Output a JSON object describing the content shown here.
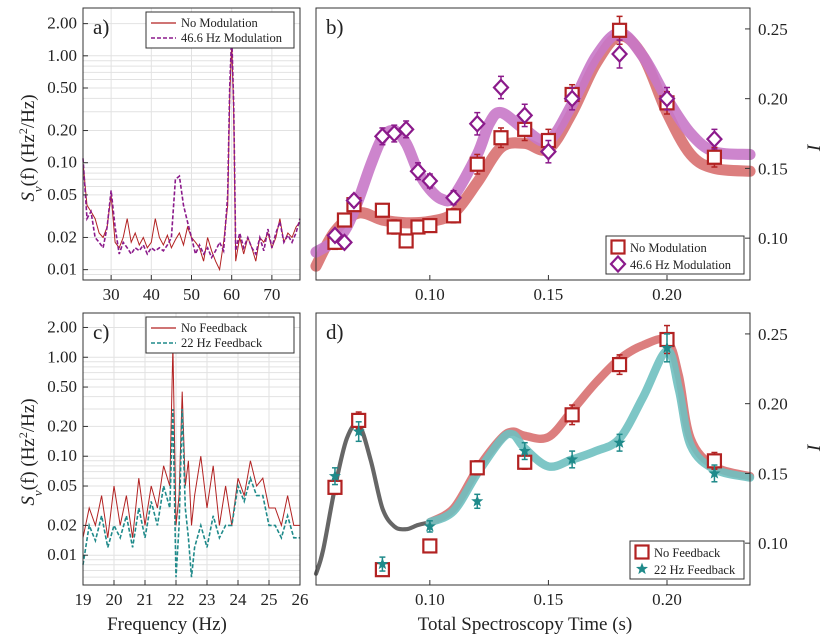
{
  "colors": {
    "red": "#b22222",
    "red_light": "#d87070",
    "purple": "#8b1a8b",
    "purple_light": "#c878c8",
    "teal": "#1f8a8a",
    "teal_light": "#6fc0c0",
    "gray": "#555555"
  },
  "shared": {
    "xlabel_left_top": "",
    "xlabel_left": "Frequency (Hz)",
    "xlabel_right": "Total Spectroscopy Time (s)",
    "ylabel_left": "Sν(f) (Hz²/Hz)",
    "ylabel_left_parts": {
      "s": "S",
      "sub": "ν",
      "rest": "(f) (Hz",
      "sup": "2",
      "end": "/Hz)"
    },
    "ylabel_right": "I"
  },
  "chart_data": [
    {
      "id": "a",
      "panel_label": "a)",
      "type": "line",
      "scale_y": "log",
      "xlim": [
        23,
        77
      ],
      "ylim": [
        0.008,
        2.8
      ],
      "xticks": [
        30,
        40,
        50,
        60,
        70
      ],
      "yticks": [
        0.01,
        0.02,
        0.05,
        0.1,
        0.2,
        0.5,
        1,
        2
      ],
      "ytick_labels": [
        "0.01",
        "0.02",
        "0.05",
        "0.10",
        "0.20",
        "0.50",
        "1.00",
        "2.00"
      ],
      "series": [
        {
          "name": "No Modulation",
          "style": "solid",
          "color": "red",
          "x": [
            23,
            24,
            25,
            26,
            27,
            28,
            29,
            30,
            31,
            32,
            33,
            34,
            35,
            36,
            37,
            38,
            39,
            40,
            41,
            42,
            43,
            44,
            45,
            46,
            47,
            48,
            49,
            50,
            51,
            52,
            53,
            54,
            55,
            56,
            57,
            58,
            59,
            59.5,
            60,
            60.5,
            61,
            62,
            63,
            64,
            65,
            66,
            67,
            68,
            69,
            70,
            71,
            72,
            73,
            74,
            75,
            76,
            77
          ],
          "y": [
            0.1,
            0.04,
            0.035,
            0.03,
            0.022,
            0.02,
            0.025,
            0.05,
            0.018,
            0.016,
            0.02,
            0.03,
            0.018,
            0.022,
            0.017,
            0.02,
            0.016,
            0.018,
            0.03,
            0.02,
            0.017,
            0.021,
            0.016,
            0.019,
            0.022,
            0.017,
            0.025,
            0.02,
            0.018,
            0.016,
            0.012,
            0.02,
            0.015,
            0.012,
            0.01,
            0.018,
            0.04,
            0.4,
            1.35,
            0.3,
            0.012,
            0.02,
            0.014,
            0.02,
            0.016,
            0.012,
            0.02,
            0.018,
            0.022,
            0.016,
            0.02,
            0.03,
            0.018,
            0.022,
            0.02,
            0.025,
            0.028
          ]
        },
        {
          "name": "46.6 Hz Modulation",
          "style": "dashed",
          "color": "purple",
          "x": [
            23,
            24,
            25,
            26,
            27,
            28,
            29,
            30,
            31,
            32,
            33,
            34,
            35,
            36,
            37,
            38,
            39,
            40,
            41,
            42,
            43,
            44,
            45,
            46,
            47,
            48,
            49,
            50,
            51,
            52,
            53,
            54,
            55,
            56,
            57,
            58,
            59,
            59.5,
            60,
            60.5,
            61,
            62,
            63,
            64,
            65,
            66,
            67,
            68,
            69,
            70,
            71,
            72,
            73,
            74,
            75,
            76,
            77
          ],
          "y": [
            0.11,
            0.03,
            0.035,
            0.02,
            0.018,
            0.016,
            0.025,
            0.055,
            0.025,
            0.014,
            0.018,
            0.016,
            0.014,
            0.016,
            0.015,
            0.017,
            0.014,
            0.016,
            0.015,
            0.016,
            0.015,
            0.017,
            0.02,
            0.07,
            0.075,
            0.04,
            0.028,
            0.02,
            0.014,
            0.017,
            0.014,
            0.016,
            0.013,
            0.015,
            0.018,
            0.015,
            0.05,
            0.5,
            1.6,
            0.35,
            0.015,
            0.022,
            0.016,
            0.02,
            0.016,
            0.014,
            0.02,
            0.015,
            0.024,
            0.016,
            0.022,
            0.028,
            0.018,
            0.021,
            0.018,
            0.022,
            0.03
          ]
        }
      ],
      "legend": {
        "position": "top-right",
        "entries": [
          "No Modulation",
          "46.6 Hz Modulation"
        ]
      }
    },
    {
      "id": "b",
      "panel_label": "b)",
      "type": "scatter",
      "xlim": [
        0.052,
        0.235
      ],
      "ylim": [
        0.07,
        0.265
      ],
      "xticks": [
        0.1,
        0.15,
        0.2
      ],
      "xtick_labels": [
        "0.10",
        "0.15",
        "0.20"
      ],
      "yticks": [
        0.1,
        0.15,
        0.2,
        0.25
      ],
      "ytick_labels": [
        "0.10",
        "0.15",
        "0.20",
        "0.25"
      ],
      "ylabel": "I",
      "bands": [
        {
          "name": "No Modulation fit",
          "color": "red_light",
          "x": [
            0.052,
            0.06,
            0.07,
            0.08,
            0.09,
            0.1,
            0.11,
            0.12,
            0.13,
            0.14,
            0.15,
            0.16,
            0.17,
            0.18,
            0.19,
            0.2,
            0.21,
            0.22,
            0.235
          ],
          "y": [
            0.08,
            0.105,
            0.118,
            0.113,
            0.111,
            0.112,
            0.118,
            0.14,
            0.165,
            0.168,
            0.164,
            0.19,
            0.225,
            0.245,
            0.23,
            0.19,
            0.16,
            0.15,
            0.148
          ],
          "width": 0.004
        },
        {
          "name": "46.6 Hz Modulation fit",
          "color": "purple_light",
          "x": [
            0.052,
            0.06,
            0.065,
            0.07,
            0.075,
            0.08,
            0.085,
            0.09,
            0.095,
            0.1,
            0.105,
            0.11,
            0.12,
            0.125,
            0.13,
            0.14,
            0.15,
            0.16,
            0.17,
            0.18,
            0.19,
            0.2,
            0.21,
            0.22,
            0.235
          ],
          "y": [
            0.09,
            0.098,
            0.108,
            0.128,
            0.152,
            0.172,
            0.177,
            0.168,
            0.148,
            0.135,
            0.128,
            0.13,
            0.16,
            0.182,
            0.19,
            0.178,
            0.17,
            0.196,
            0.23,
            0.247,
            0.23,
            0.2,
            0.175,
            0.162,
            0.16
          ],
          "width": 0.004
        }
      ],
      "series": [
        {
          "name": "No Modulation",
          "marker": "square",
          "color": "red",
          "x": [
            0.06,
            0.064,
            0.068,
            0.08,
            0.085,
            0.09,
            0.095,
            0.1,
            0.11,
            0.12,
            0.13,
            0.14,
            0.15,
            0.16,
            0.18,
            0.2,
            0.22
          ],
          "y": [
            0.097,
            0.113,
            0.124,
            0.12,
            0.108,
            0.098,
            0.108,
            0.109,
            0.116,
            0.153,
            0.172,
            0.178,
            0.17,
            0.203,
            0.249,
            0.197,
            0.158
          ],
          "err": [
            0.005,
            0.004,
            0.004,
            0.004,
            0.005,
            0.004,
            0.004,
            0.004,
            0.005,
            0.007,
            0.007,
            0.008,
            0.008,
            0.007,
            0.01,
            0.008,
            0.007
          ]
        },
        {
          "name": "46.6 Hz Modulation",
          "marker": "diamond",
          "color": "purple",
          "x": [
            0.06,
            0.064,
            0.068,
            0.08,
            0.085,
            0.09,
            0.095,
            0.1,
            0.11,
            0.12,
            0.13,
            0.14,
            0.15,
            0.16,
            0.18,
            0.2,
            0.22
          ],
          "y": [
            0.102,
            0.097,
            0.127,
            0.173,
            0.175,
            0.178,
            0.148,
            0.141,
            0.129,
            0.182,
            0.208,
            0.188,
            0.162,
            0.2,
            0.232,
            0.2,
            0.171
          ],
          "err": [
            0.004,
            0.003,
            0.004,
            0.006,
            0.006,
            0.006,
            0.006,
            0.005,
            0.005,
            0.008,
            0.008,
            0.008,
            0.008,
            0.008,
            0.01,
            0.008,
            0.007
          ]
        }
      ],
      "legend": {
        "position": "bottom-right",
        "entries": [
          "No Modulation",
          "46.6 Hz Modulation"
        ]
      }
    },
    {
      "id": "c",
      "panel_label": "c)",
      "type": "line",
      "scale_y": "log",
      "xlim": [
        19,
        26
      ],
      "ylim": [
        0.005,
        2.8
      ],
      "xticks": [
        19,
        20,
        21,
        22,
        23,
        24,
        25,
        26
      ],
      "yticks": [
        0.01,
        0.02,
        0.05,
        0.1,
        0.2,
        0.5,
        1,
        2
      ],
      "ytick_labels": [
        "0.01",
        "0.02",
        "0.05",
        "0.10",
        "0.20",
        "0.50",
        "1.00",
        "2.00"
      ],
      "series": [
        {
          "name": "No Feedback",
          "style": "solid",
          "color": "red",
          "x": [
            19,
            19.2,
            19.4,
            19.6,
            19.8,
            20,
            20.2,
            20.4,
            20.6,
            20.8,
            21,
            21.2,
            21.4,
            21.6,
            21.8,
            21.9,
            22,
            22.1,
            22.2,
            22.3,
            22.4,
            22.5,
            22.6,
            22.8,
            23,
            23.2,
            23.4,
            23.6,
            23.8,
            24,
            24.2,
            24.4,
            24.6,
            24.8,
            25,
            25.2,
            25.4,
            25.6,
            25.8,
            26
          ],
          "y": [
            0.015,
            0.03,
            0.02,
            0.04,
            0.015,
            0.05,
            0.02,
            0.04,
            0.015,
            0.06,
            0.02,
            0.05,
            0.03,
            0.08,
            0.05,
            1.3,
            0.02,
            0.04,
            0.45,
            0.05,
            0.09,
            0.02,
            0.04,
            0.1,
            0.03,
            0.08,
            0.02,
            0.05,
            0.02,
            0.06,
            0.04,
            0.09,
            0.05,
            0.06,
            0.03,
            0.03,
            0.02,
            0.04,
            0.02,
            0.02
          ]
        },
        {
          "name": "22 Hz Feedback",
          "style": "dashed",
          "color": "teal",
          "x": [
            19,
            19.2,
            19.4,
            19.6,
            19.8,
            20,
            20.2,
            20.4,
            20.6,
            20.8,
            21,
            21.2,
            21.4,
            21.6,
            21.8,
            21.9,
            22,
            22.1,
            22.2,
            22.3,
            22.4,
            22.5,
            22.6,
            22.8,
            23,
            23.2,
            23.4,
            23.6,
            23.8,
            24,
            24.2,
            24.4,
            24.6,
            24.8,
            25,
            25.2,
            25.4,
            25.6,
            25.8,
            26
          ],
          "y": [
            0.008,
            0.02,
            0.014,
            0.025,
            0.012,
            0.02,
            0.015,
            0.025,
            0.012,
            0.03,
            0.015,
            0.035,
            0.02,
            0.05,
            0.03,
            0.3,
            0.006,
            0.02,
            0.3,
            0.03,
            0.015,
            0.006,
            0.012,
            0.02,
            0.012,
            0.025,
            0.015,
            0.02,
            0.02,
            0.05,
            0.035,
            0.06,
            0.04,
            0.04,
            0.02,
            0.02,
            0.015,
            0.025,
            0.015,
            0.015
          ]
        }
      ],
      "legend": {
        "position": "top-right",
        "entries": [
          "No Feedback",
          "22 Hz Feedback"
        ]
      }
    },
    {
      "id": "d",
      "panel_label": "d)",
      "type": "scatter",
      "xlim": [
        0.052,
        0.235
      ],
      "ylim": [
        0.07,
        0.265
      ],
      "xticks": [
        0.1,
        0.15,
        0.2
      ],
      "xtick_labels": [
        "0.10",
        "0.15",
        "0.20"
      ],
      "yticks": [
        0.1,
        0.15,
        0.2,
        0.25
      ],
      "ytick_labels": [
        "0.10",
        "0.15",
        "0.20",
        "0.25"
      ],
      "ylabel": "I",
      "bands": [
        {
          "name": "shared fit",
          "color": "gray",
          "x": [
            0.052,
            0.055,
            0.06,
            0.065,
            0.07,
            0.075,
            0.08,
            0.085,
            0.09,
            0.095,
            0.1
          ],
          "y": [
            0.078,
            0.095,
            0.14,
            0.175,
            0.185,
            0.16,
            0.125,
            0.112,
            0.11,
            0.113,
            0.115
          ],
          "width": 0.0015
        },
        {
          "name": "No Feedback fit",
          "color": "red_light",
          "x": [
            0.1,
            0.11,
            0.12,
            0.13,
            0.135,
            0.14,
            0.15,
            0.16,
            0.17,
            0.18,
            0.19,
            0.2,
            0.205,
            0.21,
            0.22,
            0.235
          ],
          "y": [
            0.115,
            0.125,
            0.153,
            0.175,
            0.18,
            0.177,
            0.176,
            0.195,
            0.215,
            0.232,
            0.242,
            0.245,
            0.22,
            0.175,
            0.155,
            0.148
          ],
          "width": 0.003
        },
        {
          "name": "22 Hz Feedback fit",
          "color": "teal_light",
          "x": [
            0.1,
            0.11,
            0.12,
            0.13,
            0.135,
            0.14,
            0.15,
            0.16,
            0.17,
            0.18,
            0.19,
            0.2,
            0.205,
            0.21,
            0.22,
            0.235
          ],
          "y": [
            0.115,
            0.123,
            0.15,
            0.174,
            0.178,
            0.168,
            0.155,
            0.16,
            0.166,
            0.175,
            0.205,
            0.238,
            0.21,
            0.17,
            0.153,
            0.147
          ],
          "width": 0.003
        }
      ],
      "series": [
        {
          "name": "No Feedback",
          "marker": "square",
          "color": "red",
          "x": [
            0.06,
            0.07,
            0.08,
            0.1,
            0.12,
            0.14,
            0.16,
            0.18,
            0.2,
            0.22
          ],
          "y": [
            0.14,
            0.188,
            0.081,
            0.098,
            0.154,
            0.158,
            0.192,
            0.228,
            0.246,
            0.159
          ],
          "err": [
            0.005,
            0.006,
            0.003,
            0.003,
            0.005,
            0.005,
            0.007,
            0.007,
            0.01,
            0.006
          ]
        },
        {
          "name": "22 Hz Feedback",
          "marker": "star",
          "color": "teal",
          "x": [
            0.06,
            0.07,
            0.08,
            0.1,
            0.12,
            0.14,
            0.16,
            0.18,
            0.2,
            0.22
          ],
          "y": [
            0.148,
            0.18,
            0.085,
            0.112,
            0.13,
            0.166,
            0.16,
            0.172,
            0.24,
            0.15
          ],
          "err": [
            0.006,
            0.007,
            0.005,
            0.004,
            0.005,
            0.006,
            0.006,
            0.006,
            0.01,
            0.006
          ]
        }
      ],
      "legend": {
        "position": "bottom-right",
        "entries": [
          "No Feedback",
          "22 Hz Feedback"
        ]
      }
    }
  ]
}
